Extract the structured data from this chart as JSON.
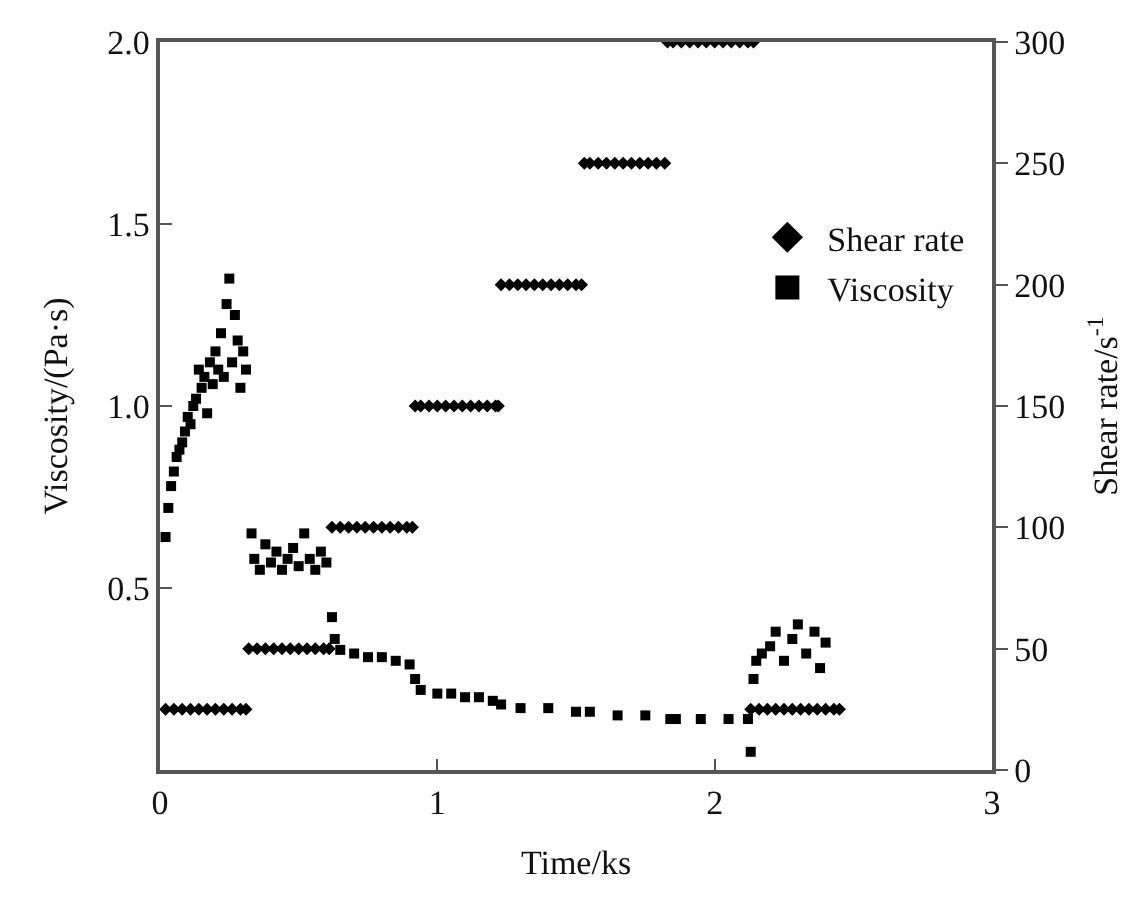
{
  "chart_data": {
    "type": "scatter",
    "xlabel": "Time/ks",
    "ylabel": "Viscosity/(Pa·s)",
    "y2label": "Shear rate/s$^{-1}$",
    "xlim": [
      0,
      3
    ],
    "xticks": [
      0,
      1,
      2,
      3
    ],
    "ylim": [
      0,
      2
    ],
    "yticks": [
      {
        "value": 0.5,
        "label": "0.5"
      },
      {
        "value": 1,
        "label": "1.0"
      },
      {
        "value": 1.5,
        "label": "1.5"
      },
      {
        "value": 2,
        "label": "2.0"
      }
    ],
    "y2lim": [
      0,
      300
    ],
    "y2ticks": [
      0,
      50,
      100,
      150,
      200,
      250,
      300
    ],
    "legend": "top right",
    "series": [
      {
        "name": "Shear rate",
        "color": "#000000",
        "marker": "diamond",
        "axis": "y2",
        "x": [
          0.02,
          0.05,
          0.08,
          0.11,
          0.14,
          0.17,
          0.2,
          0.23,
          0.26,
          0.29,
          0.31,
          0.32,
          0.35,
          0.38,
          0.41,
          0.44,
          0.47,
          0.5,
          0.53,
          0.56,
          0.59,
          0.61,
          0.62,
          0.65,
          0.68,
          0.71,
          0.74,
          0.77,
          0.8,
          0.83,
          0.86,
          0.89,
          0.91,
          0.92,
          0.94,
          0.97,
          1.0,
          1.03,
          1.06,
          1.09,
          1.12,
          1.15,
          1.18,
          1.21,
          1.22,
          1.23,
          1.26,
          1.29,
          1.32,
          1.35,
          1.38,
          1.41,
          1.44,
          1.47,
          1.5,
          1.52,
          1.53,
          1.55,
          1.58,
          1.61,
          1.64,
          1.67,
          1.7,
          1.73,
          1.76,
          1.79,
          1.82,
          1.83,
          1.85,
          1.88,
          1.91,
          1.94,
          1.97,
          2.0,
          2.03,
          2.06,
          2.09,
          2.12,
          2.14,
          2.13,
          2.16,
          2.19,
          2.22,
          2.25,
          2.28,
          2.31,
          2.34,
          2.37,
          2.4,
          2.43,
          2.45
        ],
        "values": [
          25,
          25,
          25,
          25,
          25,
          25,
          25,
          25,
          25,
          25,
          25,
          50,
          50,
          50,
          50,
          50,
          50,
          50,
          50,
          50,
          50,
          50,
          100,
          100,
          100,
          100,
          100,
          100,
          100,
          100,
          100,
          100,
          100,
          150,
          150,
          150,
          150,
          150,
          150,
          150,
          150,
          150,
          150,
          150,
          150,
          200,
          200,
          200,
          200,
          200,
          200,
          200,
          200,
          200,
          200,
          200,
          250,
          250,
          250,
          250,
          250,
          250,
          250,
          250,
          250,
          250,
          250,
          300,
          300,
          300,
          300,
          300,
          300,
          300,
          300,
          300,
          300,
          300,
          300,
          25,
          25,
          25,
          25,
          25,
          25,
          25,
          25,
          25,
          25,
          25,
          25
        ]
      },
      {
        "name": "Viscosity",
        "color": "#000000",
        "marker": "square",
        "axis": "y",
        "x": [
          0.02,
          0.03,
          0.04,
          0.05,
          0.06,
          0.07,
          0.08,
          0.09,
          0.1,
          0.11,
          0.12,
          0.13,
          0.14,
          0.15,
          0.16,
          0.17,
          0.18,
          0.19,
          0.2,
          0.21,
          0.22,
          0.23,
          0.24,
          0.25,
          0.26,
          0.27,
          0.28,
          0.29,
          0.3,
          0.31,
          0.33,
          0.34,
          0.36,
          0.38,
          0.4,
          0.42,
          0.44,
          0.46,
          0.48,
          0.5,
          0.52,
          0.54,
          0.56,
          0.58,
          0.6,
          0.62,
          0.63,
          0.65,
          0.7,
          0.75,
          0.8,
          0.85,
          0.9,
          0.92,
          0.94,
          1.0,
          1.05,
          1.1,
          1.15,
          1.2,
          1.23,
          1.3,
          1.4,
          1.5,
          1.55,
          1.65,
          1.75,
          1.84,
          1.86,
          1.95,
          2.05,
          2.12,
          2.13,
          2.14,
          2.15,
          2.17,
          2.2,
          2.22,
          2.25,
          2.28,
          2.3,
          2.33,
          2.36,
          2.38,
          2.4
        ],
        "values": [
          0.64,
          0.72,
          0.78,
          0.82,
          0.86,
          0.88,
          0.9,
          0.93,
          0.97,
          0.95,
          1.0,
          1.02,
          1.1,
          1.05,
          1.08,
          0.98,
          1.12,
          1.06,
          1.15,
          1.1,
          1.2,
          1.08,
          1.28,
          1.35,
          1.12,
          1.25,
          1.18,
          1.05,
          1.15,
          1.1,
          0.65,
          0.58,
          0.55,
          0.62,
          0.57,
          0.6,
          0.55,
          0.58,
          0.61,
          0.56,
          0.65,
          0.58,
          0.55,
          0.6,
          0.57,
          0.42,
          0.36,
          0.33,
          0.32,
          0.31,
          0.31,
          0.3,
          0.29,
          0.25,
          0.22,
          0.21,
          0.21,
          0.2,
          0.2,
          0.19,
          0.18,
          0.17,
          0.17,
          0.16,
          0.16,
          0.15,
          0.15,
          0.14,
          0.14,
          0.14,
          0.14,
          0.14,
          0.05,
          0.25,
          0.3,
          0.32,
          0.34,
          0.38,
          0.3,
          0.36,
          0.4,
          0.32,
          0.38,
          0.28,
          0.35
        ]
      }
    ]
  }
}
